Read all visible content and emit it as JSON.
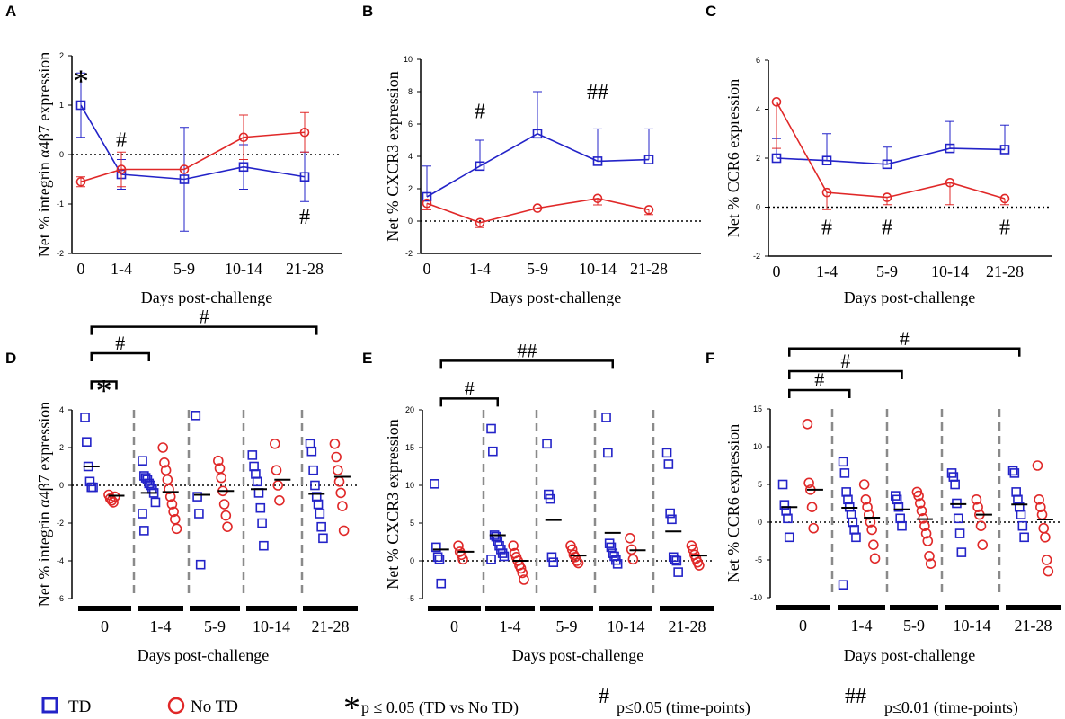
{
  "colors": {
    "td": "#2323c8",
    "notd": "#e02828",
    "axis": "#000000",
    "divider": "#8a8a8a"
  },
  "legend": {
    "td_label": "TD",
    "notd_label": "No TD",
    "star_symbol": "*",
    "star_text": "p ≤ 0.05 (TD vs No TD)",
    "hash_symbol": "#",
    "hash_text": "p≤0.05 (time-points)",
    "dhash_symbol": "##",
    "dhash_text": "p≤0.01 (time-points)"
  },
  "chart_data": [
    {
      "panel": "A",
      "type": "line",
      "ylabel": "Net % integrin α4β7 expression",
      "xlabel": "Days post-challenge",
      "categories": [
        "0",
        "1-4",
        "5-9",
        "10-14",
        "21-28"
      ],
      "ylim": [
        -2,
        2
      ],
      "yticks": [
        "-2",
        "-1",
        "0",
        "1",
        "2"
      ],
      "series": [
        {
          "name": "TD",
          "values": [
            1.0,
            -0.4,
            -0.5,
            -0.25,
            -0.45
          ],
          "err": [
            0.65,
            0.3,
            1.05,
            0.45,
            0.5
          ],
          "err_dir": "both"
        },
        {
          "name": "No TD",
          "values": [
            -0.55,
            -0.3,
            -0.3,
            0.35,
            0.45
          ],
          "err": [
            0.1,
            0.35,
            0.0,
            0.45,
            0.4
          ],
          "err_dir": "both"
        }
      ],
      "annotations": [
        {
          "text": "*",
          "cat": 0,
          "y": 1.6
        },
        {
          "text": "#",
          "cat": 1,
          "y": 0.3
        },
        {
          "text": "#",
          "cat": 4,
          "y": -1.25
        }
      ]
    },
    {
      "panel": "B",
      "type": "line",
      "ylabel": "Net % CXCR3 expression",
      "xlabel": "Days post-challenge",
      "categories": [
        "0",
        "1-4",
        "5-9",
        "10-14",
        "21-28"
      ],
      "ylim": [
        -2,
        10
      ],
      "yticks": [
        "-2",
        "0",
        "2",
        "4",
        "6",
        "8",
        "10"
      ],
      "series": [
        {
          "name": "TD",
          "values": [
            1.5,
            3.4,
            5.4,
            3.7,
            3.8
          ],
          "err": [
            1.9,
            1.6,
            2.6,
            2.0,
            1.9
          ],
          "err_dir": "up"
        },
        {
          "name": "No TD",
          "values": [
            1.1,
            -0.1,
            0.8,
            1.4,
            0.7
          ],
          "err": [
            0.4,
            0.3,
            0.0,
            0.4,
            0.3
          ],
          "err_dir": "down"
        }
      ],
      "annotations": [
        {
          "text": "#",
          "cat": 1,
          "y": 6.8
        },
        {
          "text": "##",
          "cat": 3,
          "y": 8.0
        }
      ]
    },
    {
      "panel": "C",
      "type": "line",
      "ylabel": "Net % CCR6 expression",
      "xlabel": "Days post-challenge",
      "categories": [
        "0",
        "1-4",
        "5-9",
        "10-14",
        "21-28"
      ],
      "ylim": [
        -2,
        6
      ],
      "yticks": [
        "-2",
        "0",
        "2",
        "4",
        "6"
      ],
      "series": [
        {
          "name": "TD",
          "values": [
            2.0,
            1.9,
            1.75,
            2.4,
            2.35
          ],
          "err": [
            0.8,
            1.1,
            0.7,
            1.1,
            1.0
          ],
          "err_dir": "up"
        },
        {
          "name": "No TD",
          "values": [
            4.3,
            0.6,
            0.4,
            1.0,
            0.35
          ],
          "err": [
            1.9,
            0.7,
            0.3,
            0.9,
            0.25
          ],
          "err_dir": "down"
        }
      ],
      "annotations": [
        {
          "text": "#",
          "cat": 1,
          "y": -0.8
        },
        {
          "text": "#",
          "cat": 2,
          "y": -0.8
        },
        {
          "text": "#",
          "cat": 4,
          "y": -0.8
        }
      ]
    },
    {
      "panel": "D",
      "type": "scatter",
      "ylabel": "Net % integrin α4β7 expression",
      "xlabel": "Days post-challenge",
      "categories": [
        "0",
        "1-4",
        "5-9",
        "10-14",
        "21-28"
      ],
      "ylim": [
        -6,
        4
      ],
      "yticks": [
        "-6",
        "-4",
        "-2",
        "0",
        "2",
        "4"
      ],
      "groups": [
        {
          "cat": 0,
          "td": [
            3.6,
            2.3,
            1.0,
            0.2,
            -0.1,
            -0.1
          ],
          "td_mean": 1.0,
          "notd": [
            -0.5,
            -0.7,
            -0.8,
            -0.9,
            -0.6
          ],
          "notd_mean": -0.55
        },
        {
          "cat": 1,
          "td": [
            1.3,
            0.5,
            0.4,
            0.3,
            0.1,
            0.0,
            -0.2,
            -0.4,
            -0.9,
            -1.5,
            -2.4
          ],
          "td_mean": -0.4,
          "notd": [
            2.0,
            1.2,
            0.8,
            0.3,
            -0.2,
            -0.6,
            -1.0,
            -1.4,
            -1.8,
            -2.3
          ],
          "notd_mean": -0.35
        },
        {
          "cat": 2,
          "td": [
            3.7,
            -0.6,
            -1.5,
            -4.2
          ],
          "td_mean": -0.5,
          "notd": [
            1.3,
            0.9,
            0.4,
            -0.3,
            -1.0,
            -1.6,
            -2.2
          ],
          "notd_mean": -0.3
        },
        {
          "cat": 3,
          "td": [
            1.6,
            1.0,
            0.6,
            0.2,
            -0.4,
            -1.2,
            -2.0,
            -3.2
          ],
          "td_mean": -0.2,
          "notd": [
            2.2,
            0.8,
            0.0,
            -0.8
          ],
          "notd_mean": 0.3
        },
        {
          "cat": 4,
          "td": [
            2.2,
            1.8,
            0.8,
            0.0,
            -0.6,
            -1.0,
            -1.5,
            -2.2,
            -2.8
          ],
          "td_mean": -0.45,
          "notd": [
            2.2,
            1.5,
            0.8,
            0.2,
            -0.4,
            -1.1,
            -2.4
          ],
          "notd_mean": 0.45
        }
      ],
      "brackets": [
        {
          "from": 0,
          "to": 0.5,
          "label": "*",
          "y": 5.5
        },
        {
          "from": 0,
          "to": 1,
          "label": "#",
          "y": 7.0
        },
        {
          "from": 0,
          "to": 4,
          "label": "#",
          "y": 8.4
        }
      ]
    },
    {
      "panel": "E",
      "type": "scatter",
      "ylabel": "Net % CXCR3 expression",
      "xlabel": "Days post-challenge",
      "categories": [
        "0",
        "1-4",
        "5-9",
        "10-14",
        "21-28"
      ],
      "ylim": [
        -5,
        20
      ],
      "yticks": [
        "-5",
        "0",
        "5",
        "10",
        "15",
        "20"
      ],
      "groups": [
        {
          "cat": 0,
          "td": [
            10.2,
            1.8,
            0.5,
            0.2,
            -3.0
          ],
          "td_mean": 1.5,
          "notd": [
            2.0,
            1.2,
            0.8,
            0.2
          ],
          "notd_mean": 1.2
        },
        {
          "cat": 1,
          "td": [
            17.5,
            14.5,
            3.4,
            3.2,
            2.6,
            2.0,
            1.5,
            1.0,
            0.6,
            0.2
          ],
          "td_mean": 3.4,
          "notd": [
            2.0,
            1.0,
            0.5,
            0.0,
            -0.6,
            -1.0,
            -1.6,
            -2.5
          ],
          "notd_mean": 0.0
        },
        {
          "cat": 2,
          "td": [
            15.5,
            8.8,
            8.2,
            0.5,
            -0.2
          ],
          "td_mean": 5.4,
          "notd": [
            2.0,
            1.5,
            0.8,
            0.5,
            0.0,
            -0.3
          ],
          "notd_mean": 0.7
        },
        {
          "cat": 3,
          "td": [
            19.0,
            14.3,
            2.3,
            1.8,
            1.0,
            0.6,
            0.1,
            -0.4
          ],
          "td_mean": 3.7,
          "notd": [
            3.0,
            1.5,
            0.2
          ],
          "notd_mean": 1.4
        },
        {
          "cat": 4,
          "td": [
            14.3,
            12.8,
            6.3,
            5.5,
            0.5,
            0.2,
            0.0,
            -1.5
          ],
          "td_mean": 3.9,
          "notd": [
            2.0,
            1.5,
            0.8,
            0.3,
            -0.2,
            -0.6
          ],
          "notd_mean": 0.7
        }
      ],
      "brackets": [
        {
          "from": 0,
          "to": 1,
          "label": "#",
          "y": 21.5
        },
        {
          "from": 0,
          "to": 3,
          "label": "##",
          "y": 26.5
        }
      ]
    },
    {
      "panel": "F",
      "type": "scatter",
      "ylabel": "Net % CCR6 expression",
      "xlabel": "Days post-challenge",
      "categories": [
        "0",
        "1-4",
        "5-9",
        "10-14",
        "21-28"
      ],
      "ylim": [
        -10,
        15
      ],
      "yticks": [
        "-10",
        "-5",
        "0",
        "5",
        "10",
        "15"
      ],
      "groups": [
        {
          "cat": 0,
          "td": [
            5.0,
            2.3,
            1.5,
            0.5,
            -2.0
          ],
          "td_mean": 2.0,
          "notd": [
            13.0,
            5.2,
            4.3,
            2.0,
            -0.8
          ],
          "notd_mean": 4.3
        },
        {
          "cat": 1,
          "td": [
            8.0,
            6.5,
            4.0,
            3.0,
            2.0,
            1.0,
            0.0,
            -1.0,
            -2.0,
            -8.3
          ],
          "td_mean": 1.9,
          "notd": [
            5.0,
            3.0,
            2.0,
            1.0,
            0.0,
            -1.0,
            -3.0,
            -4.8
          ],
          "notd_mean": 0.6
        },
        {
          "cat": 2,
          "td": [
            3.5,
            3.0,
            2.0,
            0.5,
            -0.5
          ],
          "td_mean": 1.7,
          "notd": [
            4.0,
            3.5,
            2.5,
            1.5,
            0.5,
            -0.5,
            -1.5,
            -2.5,
            -4.5,
            -5.5
          ],
          "notd_mean": 0.4
        },
        {
          "cat": 3,
          "td": [
            6.5,
            6.0,
            5.0,
            2.5,
            0.5,
            -1.5,
            -4.0
          ],
          "td_mean": 2.4,
          "notd": [
            3.0,
            2.0,
            1.0,
            -0.5,
            -3.0
          ],
          "notd_mean": 1.0
        },
        {
          "cat": 4,
          "td": [
            6.8,
            6.5,
            4.0,
            3.0,
            2.0,
            1.0,
            -0.5,
            -2.0
          ],
          "td_mean": 2.35,
          "notd": [
            7.5,
            3.0,
            2.0,
            1.0,
            -0.8,
            -2.0,
            -5.0,
            -6.5
          ],
          "notd_mean": 0.35
        }
      ],
      "brackets": [
        {
          "from": 0,
          "to": 1,
          "label": "#",
          "y": 17.5
        },
        {
          "from": 0,
          "to": 2,
          "label": "#",
          "y": 20.0
        },
        {
          "from": 0,
          "to": 4,
          "label": "#",
          "y": 23.0
        }
      ]
    }
  ]
}
